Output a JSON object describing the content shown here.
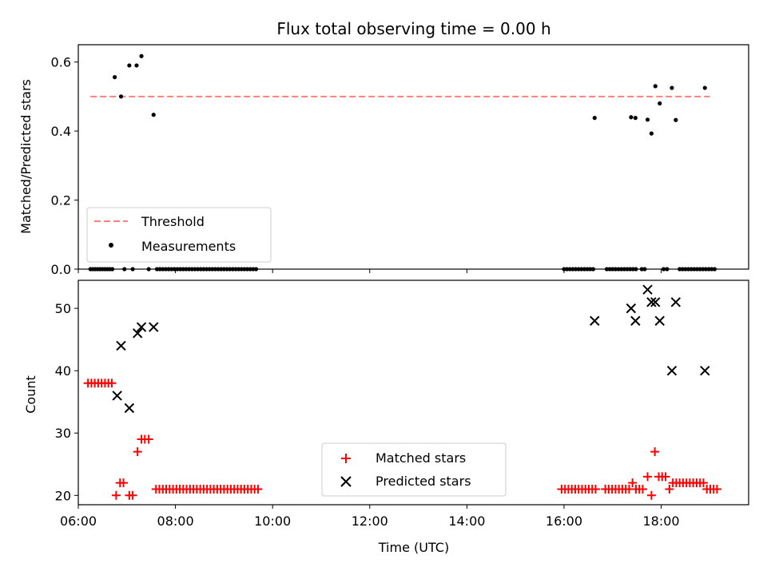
{
  "chart_data": [
    {
      "type": "scatter",
      "title": "Flux total observing time = 0.00 h",
      "xlabel": "",
      "ylabel": "Matched/Predicted stars",
      "xlim": [
        6.0,
        19.8
      ],
      "ylim": [
        0,
        0.65
      ],
      "yticks": [
        0.0,
        0.2,
        0.4,
        0.6
      ],
      "ytick_labels": [
        "0.0",
        "0.2",
        "0.4",
        "0.6"
      ],
      "xticks": [
        6,
        8,
        10,
        12,
        14,
        16,
        18
      ],
      "grid": false,
      "legend_position": "lower-left",
      "threshold": {
        "name": "Threshold",
        "color": "#ff7f7f",
        "style": "dashed",
        "value": 0.5,
        "x_range": [
          6.25,
          19.0
        ]
      },
      "measurements": {
        "name": "Measurements",
        "color": "#000000",
        "x": [
          6.75,
          6.88,
          7.05,
          7.2,
          7.3,
          7.55,
          16.63,
          17.38,
          17.47,
          17.72,
          17.8,
          17.88,
          17.97,
          18.22,
          18.3,
          18.9
        ],
        "y": [
          0.556,
          0.5,
          0.59,
          0.59,
          0.617,
          0.447,
          0.438,
          0.44,
          0.438,
          0.433,
          0.393,
          0.53,
          0.48,
          0.525,
          0.432,
          0.525
        ]
      },
      "zero_measurements_x": [
        6.25,
        6.3,
        6.35,
        6.4,
        6.45,
        6.5,
        6.55,
        6.6,
        6.65,
        6.7,
        6.95,
        7.12,
        7.45,
        7.62,
        7.68,
        7.74,
        7.8,
        7.86,
        7.92,
        7.98,
        8.04,
        8.1,
        8.16,
        8.22,
        8.28,
        8.34,
        8.4,
        8.46,
        8.52,
        8.58,
        8.64,
        8.7,
        8.76,
        8.82,
        8.88,
        8.94,
        9.0,
        9.06,
        9.12,
        9.18,
        9.24,
        9.3,
        9.36,
        9.42,
        9.48,
        9.54,
        9.6,
        9.66,
        16.0,
        16.06,
        16.12,
        16.18,
        16.24,
        16.3,
        16.36,
        16.42,
        16.48,
        16.54,
        16.6,
        16.88,
        16.94,
        17.0,
        17.06,
        17.12,
        17.18,
        17.24,
        17.3,
        17.36,
        17.42,
        17.48,
        17.6,
        17.66,
        18.05,
        18.12,
        18.38,
        18.44,
        18.5,
        18.56,
        18.62,
        18.68,
        18.74,
        18.8,
        18.86,
        18.92,
        18.98,
        19.04,
        19.1
      ]
    },
    {
      "type": "scatter",
      "title": "",
      "xlabel": "Time (UTC)",
      "ylabel": "Count",
      "xlim": [
        6.0,
        19.8
      ],
      "ylim": [
        18.5,
        54.5
      ],
      "yticks": [
        20,
        30,
        40,
        50
      ],
      "ytick_labels": [
        "20",
        "30",
        "40",
        "50"
      ],
      "xticks": [
        6,
        8,
        10,
        12,
        14,
        16,
        18
      ],
      "xtick_labels": [
        "06:00",
        "08:00",
        "10:00",
        "12:00",
        "14:00",
        "16:00",
        "18:00"
      ],
      "grid": false,
      "legend_position": "lower-center",
      "series": [
        {
          "name": "Matched stars",
          "marker": "plus",
          "color": "#ff0000",
          "x": [
            6.2,
            6.27,
            6.34,
            6.41,
            6.48,
            6.55,
            6.62,
            6.69,
            6.78,
            6.86,
            6.93,
            7.05,
            7.12,
            7.22,
            7.3,
            7.37,
            7.45,
            7.6,
            7.67,
            7.74,
            7.81,
            7.88,
            7.95,
            8.02,
            8.09,
            8.16,
            8.23,
            8.3,
            8.37,
            8.44,
            8.51,
            8.58,
            8.65,
            8.72,
            8.79,
            8.86,
            8.93,
            9.0,
            9.07,
            9.14,
            9.21,
            9.28,
            9.35,
            9.42,
            9.49,
            9.56,
            9.63,
            9.7,
            15.95,
            16.02,
            16.09,
            16.16,
            16.23,
            16.3,
            16.37,
            16.44,
            16.51,
            16.58,
            16.65,
            16.85,
            16.92,
            16.99,
            17.06,
            17.13,
            17.2,
            17.27,
            17.34,
            17.41,
            17.48,
            17.55,
            17.62,
            17.72,
            17.8,
            17.87,
            17.95,
            18.02,
            18.09,
            18.17,
            18.24,
            18.31,
            18.38,
            18.45,
            18.52,
            18.59,
            18.66,
            18.73,
            18.8,
            18.87,
            18.94,
            19.01,
            19.08,
            19.15
          ],
          "y": [
            38,
            38,
            38,
            38,
            38,
            38,
            38,
            38,
            20,
            22,
            22,
            20,
            20,
            27,
            29,
            29,
            29,
            21,
            21,
            21,
            21,
            21,
            21,
            21,
            21,
            21,
            21,
            21,
            21,
            21,
            21,
            21,
            21,
            21,
            21,
            21,
            21,
            21,
            21,
            21,
            21,
            21,
            21,
            21,
            21,
            21,
            21,
            21,
            21,
            21,
            21,
            21,
            21,
            21,
            21,
            21,
            21,
            21,
            21,
            21,
            21,
            21,
            21,
            21,
            21,
            21,
            21,
            22,
            21,
            21,
            21,
            23,
            20,
            27,
            23,
            23,
            23,
            21,
            22,
            22,
            22,
            22,
            22,
            22,
            22,
            22,
            22,
            22,
            21,
            21,
            21,
            21
          ]
        },
        {
          "name": "Predicted stars",
          "marker": "x",
          "color": "#000000",
          "x": [
            6.8,
            6.88,
            7.05,
            7.22,
            7.3,
            7.55,
            16.63,
            17.38,
            17.47,
            17.72,
            17.8,
            17.88,
            17.97,
            18.22,
            18.3,
            18.9
          ],
          "y": [
            36,
            44,
            34,
            46,
            47,
            47,
            48,
            50,
            48,
            53,
            51,
            51,
            48,
            40,
            51,
            40
          ]
        }
      ]
    }
  ]
}
